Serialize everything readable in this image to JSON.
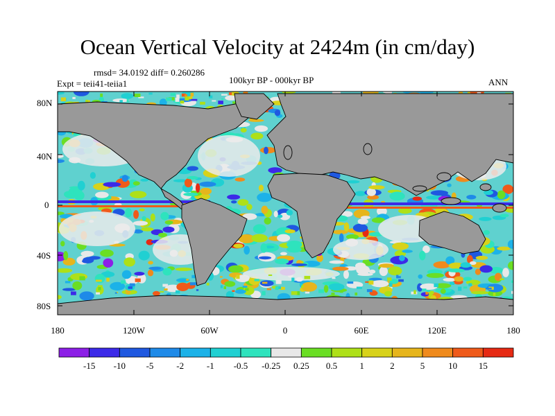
{
  "header": {
    "title": "Ocean Vertical Velocity at 2424m (in cm/day)",
    "stats": "rmsd= 34.0192 diff= 0.260286",
    "experiment": "Expt = teii41-teiia1",
    "period": "100kyr BP - 000kyr BP",
    "season": "ANN"
  },
  "axes": {
    "lat_ticks": [
      "80N",
      "40N",
      "0",
      "40S",
      "80S"
    ],
    "lon_ticks": [
      "180",
      "120W",
      "60W",
      "0",
      "60E",
      "120E",
      "180"
    ]
  },
  "colorbar": {
    "labels": [
      "-15",
      "-10",
      "-5",
      "-2",
      "-1",
      "-0.5",
      "-0.25",
      "0.25",
      "0.5",
      "1",
      "2",
      "5",
      "10",
      "15"
    ],
    "colors": [
      "#8c1fe6",
      "#3c2ae8",
      "#1f58e0",
      "#1e8ae8",
      "#1cb2e8",
      "#20d0d2",
      "#2ee3bd",
      "#e8e8e8",
      "#6ade24",
      "#aee018",
      "#d8d21a",
      "#e6b51c",
      "#ef8a1c",
      "#ef5a1a",
      "#e62a14"
    ]
  },
  "colors": {
    "land": "#999999",
    "coast": "#000000"
  }
}
